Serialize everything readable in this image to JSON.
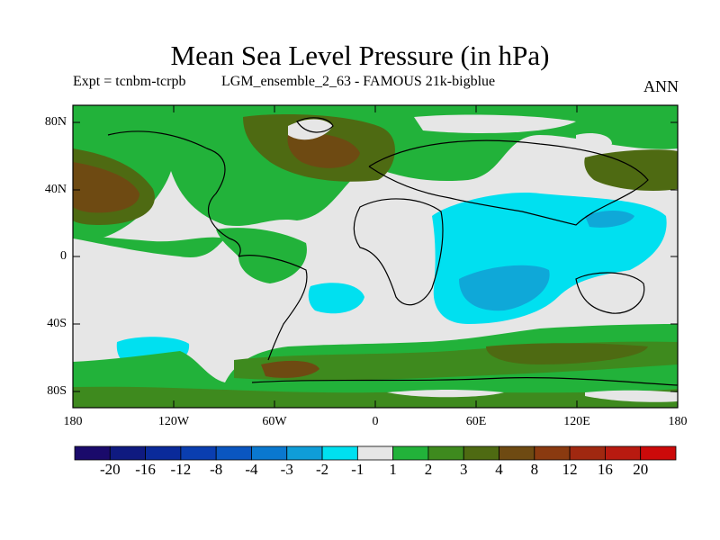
{
  "title": "Mean Sea Level Pressure (in hPa)",
  "subtitle_left": "Expt = tcnbm-tcrpb",
  "subtitle_center": "LGM_ensemble_2_63 - FAMOUS 21k-bigblue",
  "season": "ANN",
  "lat_ticks": [
    "80N",
    "40N",
    "0",
    "40S",
    "80S"
  ],
  "lon_ticks": [
    "180",
    "120W",
    "60W",
    "0",
    "60E",
    "120E",
    "180"
  ],
  "colorbar": {
    "colors": [
      "#1a0a6b",
      "#0f1a80",
      "#0a2a9a",
      "#0a3eb0",
      "#0a56c0",
      "#0a78cf",
      "#0f9dd8",
      "#00e0f0",
      "#e6e6e6",
      "#22b23a",
      "#3e8a1e",
      "#4e6a12",
      "#6e4a12",
      "#8a3a10",
      "#a02810",
      "#b81a10",
      "#cc0a0a"
    ],
    "labels": [
      "-20",
      "-16",
      "-12",
      "-8",
      "-4",
      "-3",
      "-2",
      "-1",
      "1",
      "2",
      "3",
      "4",
      "8",
      "12",
      "16",
      "20"
    ]
  },
  "field_colors": {
    "neutral": "#e6e6e6",
    "pos2": "#22b23a",
    "pos3": "#3e8a1e",
    "pos4": "#5a5a12",
    "pos8": "#7a3e12",
    "neg1": "#00e0f0",
    "neg2": "#0fa8d8"
  }
}
